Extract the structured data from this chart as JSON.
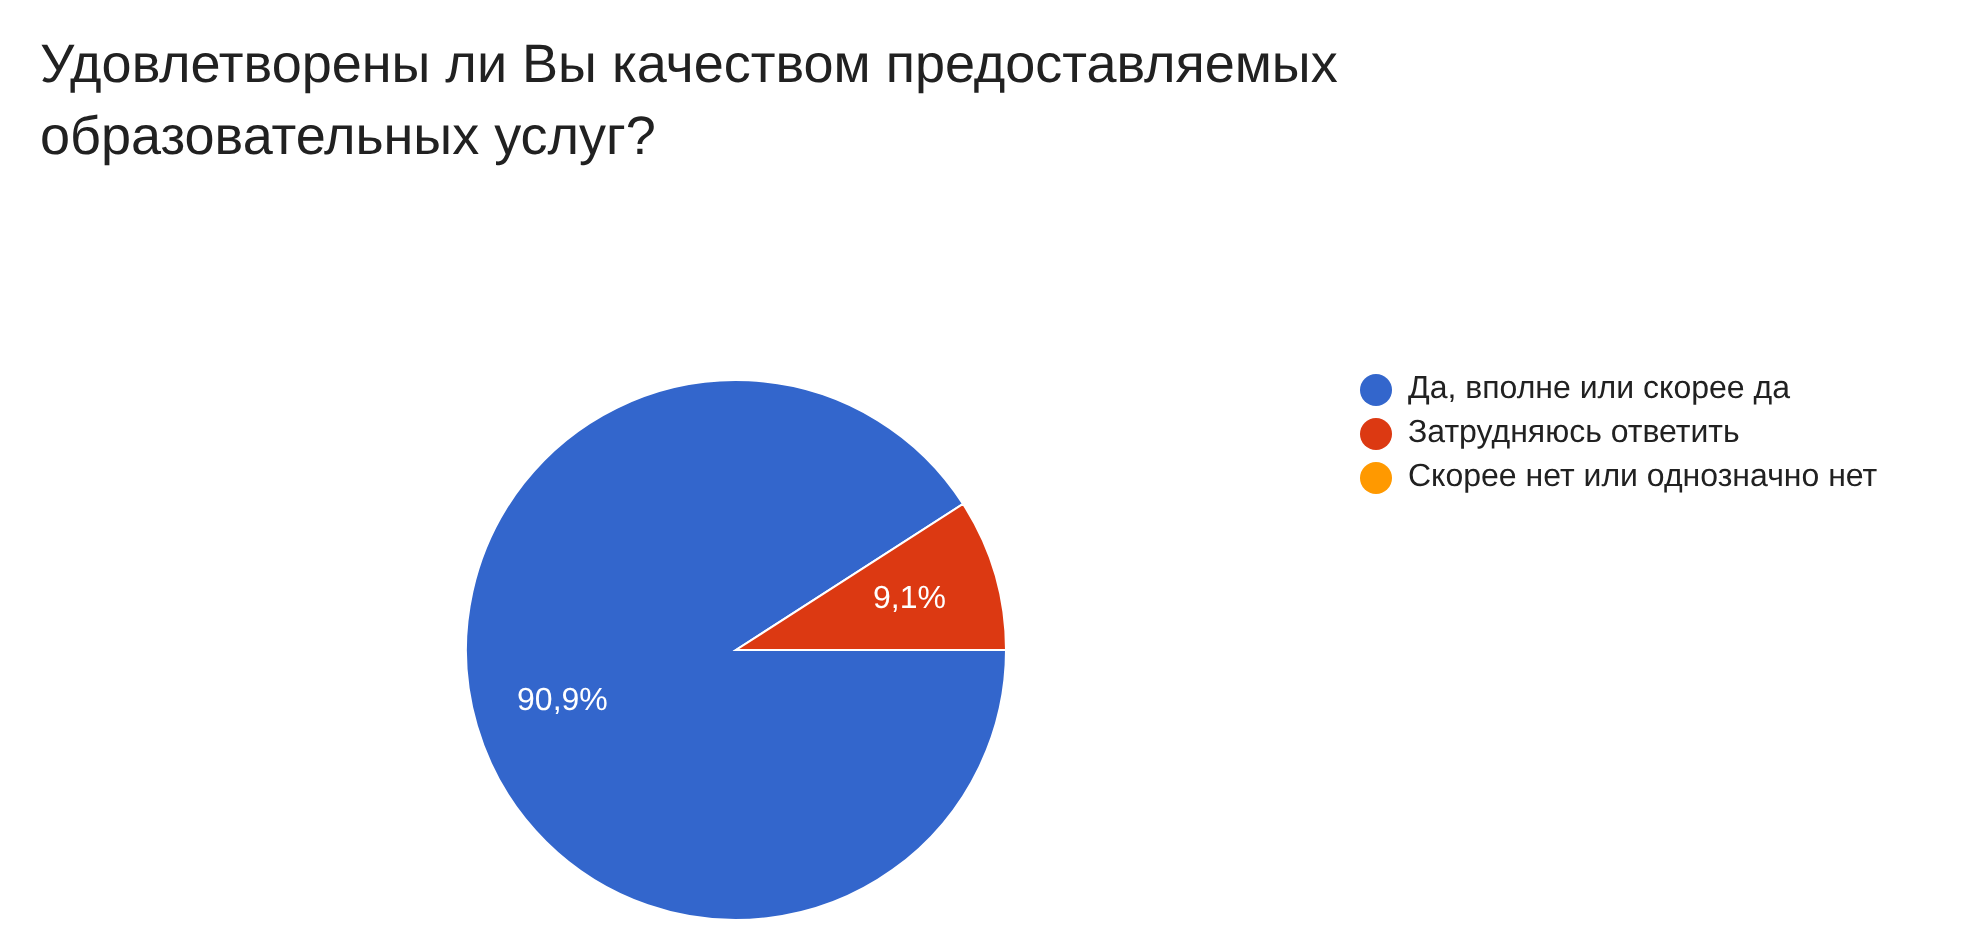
{
  "chart_data": {
    "type": "pie",
    "title": "Удовлетворены ли Вы качеством предоставляемых образовательных услуг?",
    "categories": [
      "Да, вполне или скорее да",
      "Затрудняюсь ответить",
      "Скорее нет или однозначно нет"
    ],
    "values": [
      90.9,
      9.1,
      0
    ],
    "colors": [
      "#3366cc",
      "#dc3912",
      "#ff9900"
    ],
    "value_labels": [
      "90,9%",
      "9,1%",
      null
    ],
    "legend": "right"
  }
}
